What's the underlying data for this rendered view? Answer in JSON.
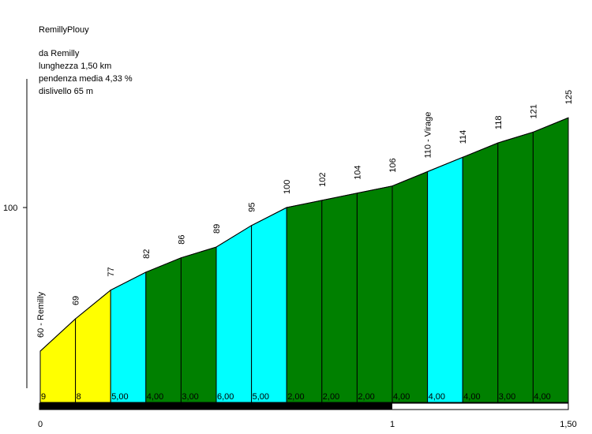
{
  "title": "RemillyPlouy",
  "info": {
    "from": "da Remilly",
    "length": "lunghezza 1,50 km",
    "avg_gradient": "pendenza media 4,33 %",
    "elevation_gain": "dislivello 65 m"
  },
  "colors": {
    "yellow": "#ffff00",
    "cyan": "#00ffff",
    "green": "#008000",
    "outline": "#000000",
    "scale_bar": "#000000"
  },
  "chart_data": {
    "type": "area",
    "x_unit": "km",
    "xlim": [
      0,
      1.5
    ],
    "ylim": [
      55,
      135
    ],
    "y_ticks": [
      {
        "value": 100,
        "label": "100"
      }
    ],
    "x_ticks": [
      {
        "value": 0,
        "label": "0"
      },
      {
        "value": 1,
        "label": "1"
      },
      {
        "value": 1.5,
        "label": "1,50"
      }
    ],
    "points": [
      {
        "x": 0.0,
        "y": 60,
        "label": "60 - Remilly"
      },
      {
        "x": 0.1,
        "y": 69,
        "label": "69"
      },
      {
        "x": 0.2,
        "y": 77,
        "label": "77"
      },
      {
        "x": 0.3,
        "y": 82,
        "label": "82"
      },
      {
        "x": 0.4,
        "y": 86,
        "label": "86"
      },
      {
        "x": 0.5,
        "y": 89,
        "label": "89"
      },
      {
        "x": 0.6,
        "y": 95,
        "label": "95"
      },
      {
        "x": 0.7,
        "y": 100,
        "label": "100"
      },
      {
        "x": 0.8,
        "y": 102,
        "label": "102"
      },
      {
        "x": 0.9,
        "y": 104,
        "label": "104"
      },
      {
        "x": 1.0,
        "y": 106,
        "label": "106"
      },
      {
        "x": 1.1,
        "y": 110,
        "label": "110 - Virage"
      },
      {
        "x": 1.2,
        "y": 114,
        "label": "114"
      },
      {
        "x": 1.3,
        "y": 118,
        "label": "118"
      },
      {
        "x": 1.4,
        "y": 121,
        "label": "121"
      },
      {
        "x": 1.5,
        "y": 125,
        "label": "125"
      }
    ],
    "segments": [
      {
        "gradient": "9",
        "color": "yellow"
      },
      {
        "gradient": "8",
        "color": "yellow"
      },
      {
        "gradient": "5,00",
        "color": "cyan"
      },
      {
        "gradient": "4,00",
        "color": "green"
      },
      {
        "gradient": "3,00",
        "color": "green"
      },
      {
        "gradient": "6,00",
        "color": "cyan"
      },
      {
        "gradient": "5,00",
        "color": "cyan"
      },
      {
        "gradient": "2,00",
        "color": "green"
      },
      {
        "gradient": "2,00",
        "color": "green"
      },
      {
        "gradient": "2,00",
        "color": "green"
      },
      {
        "gradient": "4,00",
        "color": "green"
      },
      {
        "gradient": "4,00",
        "color": "cyan"
      },
      {
        "gradient": "4,00",
        "color": "green"
      },
      {
        "gradient": "3,00",
        "color": "green"
      },
      {
        "gradient": "4,00",
        "color": "green"
      }
    ],
    "scale_bar": {
      "filled_to": 1,
      "total": 1.5
    }
  }
}
